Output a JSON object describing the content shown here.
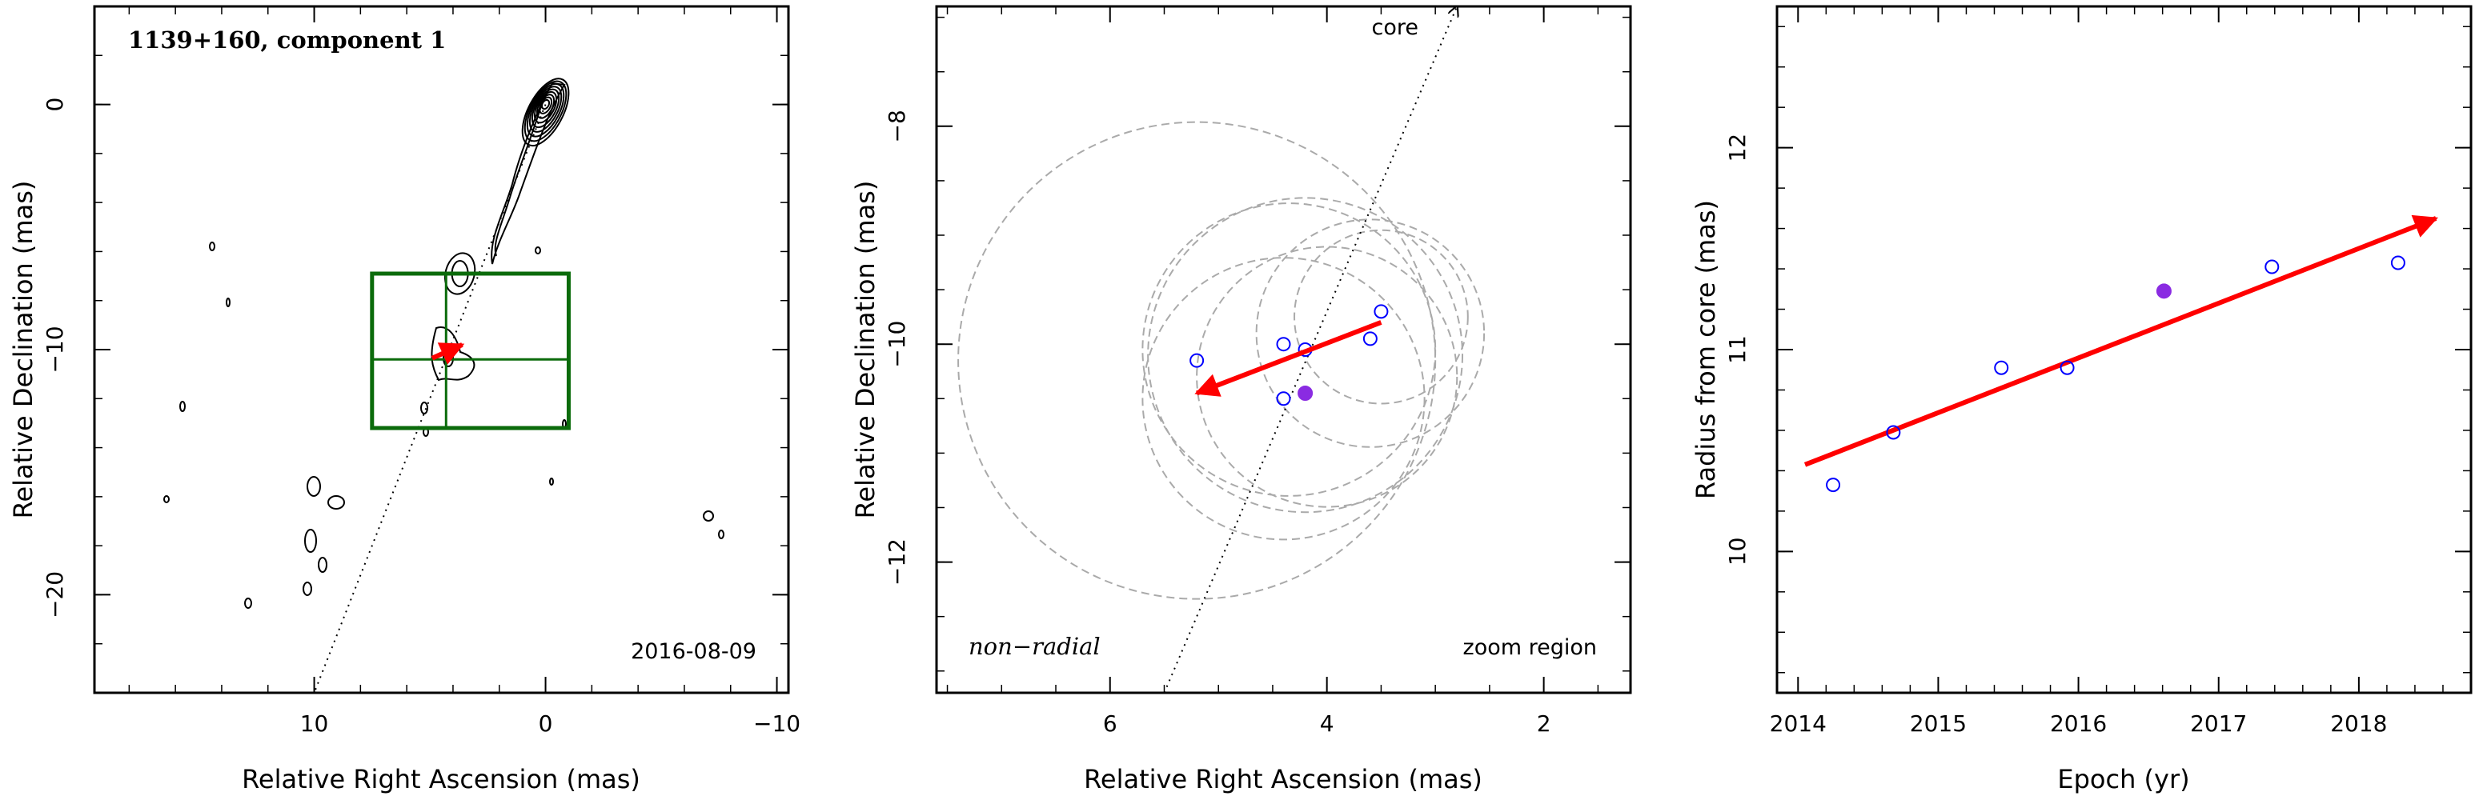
{
  "chart_data": [
    {
      "type": "scatter",
      "subtype": "contour-map",
      "title": "1139+160, component 1",
      "xlabel": "Relative Right Ascension (mas)",
      "ylabel": "Relative Declination (mas)",
      "xlim": [
        19.5,
        -10.5
      ],
      "ylim": [
        -24,
        4
      ],
      "x_reversed": true,
      "xticks": [
        10,
        0,
        -10
      ],
      "yticks": [
        0,
        -10,
        -20
      ],
      "date_label": "2016-08-09",
      "zoom_box": {
        "x": [
          7.5,
          -1.0
        ],
        "y": [
          -13.2,
          -6.9
        ],
        "cross_x": 4.3,
        "cross_y": -10.4
      },
      "jet_axis": [
        [
          0,
          0
        ],
        [
          10,
          -24
        ]
      ],
      "motion_vector": {
        "from": [
          4.9,
          -10.35
        ],
        "to": [
          3.6,
          -9.8
        ]
      },
      "colors": {
        "contours": "#000000",
        "box": "#0b6b0b",
        "vector": "#ff0000",
        "axis": "#000000"
      }
    },
    {
      "type": "scatter",
      "xlabel": "Relative Right Ascension (mas)",
      "ylabel": "Relative Declination (mas)",
      "xlim": [
        7.6,
        1.2
      ],
      "ylim": [
        -13.2,
        -6.9
      ],
      "x_reversed": true,
      "xticks": [
        6,
        4,
        2
      ],
      "yticks": [
        -8,
        -10,
        -12
      ],
      "label_left": "non−radial",
      "label_right": "zoom region",
      "core_label": "core",
      "points": [
        {
          "x": 5.2,
          "y": -10.15
        },
        {
          "x": 4.4,
          "y": -10.0
        },
        {
          "x": 4.2,
          "y": -10.05
        },
        {
          "x": 3.6,
          "y": -9.95
        },
        {
          "x": 3.5,
          "y": -9.7
        },
        {
          "x": 4.4,
          "y": -10.5
        }
      ],
      "highlight_point": {
        "x": 4.2,
        "y": -10.45
      },
      "uncertainty_circles": [
        {
          "x": 5.2,
          "y": -10.15,
          "r": 2.2
        },
        {
          "x": 4.35,
          "y": -10.05,
          "r": 1.35
        },
        {
          "x": 4.2,
          "y": -10.1,
          "r": 1.45
        },
        {
          "x": 3.6,
          "y": -9.9,
          "r": 1.05
        },
        {
          "x": 3.5,
          "y": -9.75,
          "r": 0.8
        },
        {
          "x": 4.4,
          "y": -10.5,
          "r": 1.3
        },
        {
          "x": 4.0,
          "y": -10.3,
          "r": 1.2
        }
      ],
      "jet_axis": [
        [
          5.5,
          -13.2
        ],
        [
          2.8,
          -6.9
        ]
      ],
      "motion_vector": {
        "from": [
          3.5,
          -9.8
        ],
        "to": [
          5.2,
          -10.45
        ]
      },
      "colors": {
        "points": "#0000ff",
        "highlight": "#8a2be2",
        "circles": "#aaaaaa",
        "vector": "#ff0000"
      }
    },
    {
      "type": "scatter",
      "xlabel": "Epoch (yr)",
      "ylabel": "Radius from core (mas)",
      "xlim": [
        2013.85,
        2018.8
      ],
      "ylim": [
        9.3,
        12.7
      ],
      "xticks": [
        2014,
        2015,
        2016,
        2017,
        2018
      ],
      "yticks": [
        10,
        11,
        12
      ],
      "points": [
        {
          "x": 2014.25,
          "y": 10.33
        },
        {
          "x": 2014.68,
          "y": 10.59
        },
        {
          "x": 2015.45,
          "y": 10.91
        },
        {
          "x": 2015.92,
          "y": 10.91
        },
        {
          "x": 2017.38,
          "y": 11.41
        },
        {
          "x": 2018.28,
          "y": 11.43
        }
      ],
      "highlight_point": {
        "x": 2016.61,
        "y": 11.29
      },
      "fit_line": {
        "from": [
          2014.05,
          10.43
        ],
        "to": [
          2018.55,
          11.65
        ]
      },
      "colors": {
        "points": "#0000ff",
        "highlight": "#8a2be2",
        "fit": "#ff0000"
      }
    }
  ]
}
